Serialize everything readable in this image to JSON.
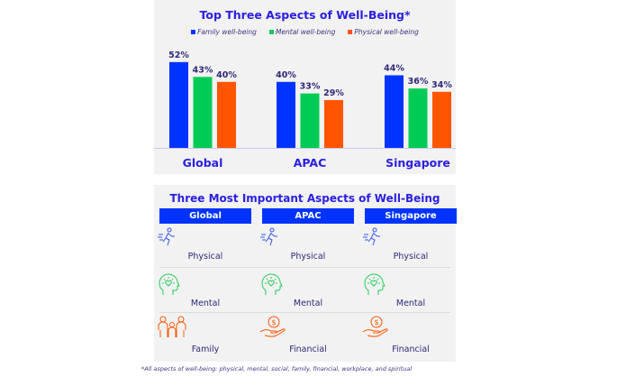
{
  "chart_data": {
    "type": "bar",
    "title": "Top Three Aspects of Well-Being*",
    "categories": [
      "Global",
      "APAC",
      "Singapore"
    ],
    "series": [
      {
        "name": "Family well-being",
        "color": "#0033ff",
        "values": [
          52,
          40,
          44
        ]
      },
      {
        "name": "Mental well-being",
        "color": "#00cc55",
        "values": [
          43,
          33,
          36
        ]
      },
      {
        "name": "Physical well-being",
        "color": "#ff5500",
        "values": [
          40,
          29,
          34
        ]
      }
    ],
    "value_format": "percent",
    "legend": "top",
    "grid": false
  },
  "table": {
    "title": "Three Most Important Aspects of Well-Being",
    "columns": [
      {
        "header": "Global",
        "items": [
          {
            "label": "Physical",
            "icon": "running-person-icon"
          },
          {
            "label": "Mental",
            "icon": "head-heart-icon"
          },
          {
            "label": "Family",
            "icon": "family-icon"
          }
        ]
      },
      {
        "header": "APAC",
        "items": [
          {
            "label": "Physical",
            "icon": "running-person-icon"
          },
          {
            "label": "Mental",
            "icon": "head-heart-icon"
          },
          {
            "label": "Financial",
            "icon": "hand-coin-icon"
          }
        ]
      },
      {
        "header": "Singapore",
        "items": [
          {
            "label": "Physical",
            "icon": "running-person-icon"
          },
          {
            "label": "Mental",
            "icon": "head-heart-icon"
          },
          {
            "label": "Financial",
            "icon": "hand-coin-icon"
          }
        ]
      }
    ]
  },
  "footnote": "*All aspects of well-being: physical, mental, social, family, financial, workplace, and spiritual"
}
